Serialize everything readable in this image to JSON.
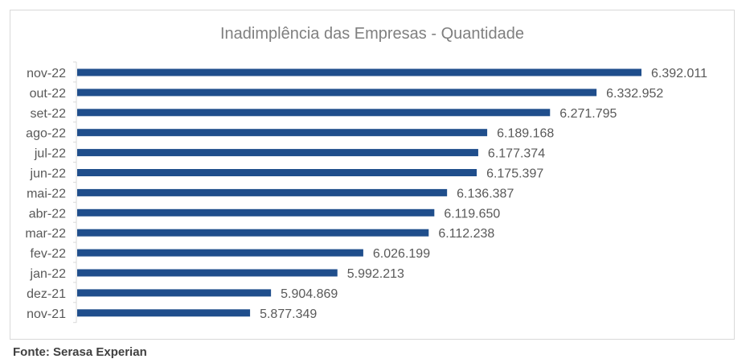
{
  "chart_data": {
    "type": "bar",
    "orientation": "horizontal",
    "title": "Inadimplência das Empresas - Quantidade",
    "xlabel": "",
    "ylabel": "",
    "categories": [
      "nov-22",
      "out-22",
      "set-22",
      "ago-22",
      "jul-22",
      "jun-22",
      "mai-22",
      "abr-22",
      "mar-22",
      "fev-22",
      "jan-22",
      "dez-21",
      "nov-21"
    ],
    "values": [
      6392011,
      6332952,
      6271795,
      6189168,
      6177374,
      6175397,
      6136387,
      6119650,
      6112238,
      6026199,
      5992213,
      5904869,
      5877349
    ],
    "value_labels": [
      "6.392.011",
      "6.332.952",
      "6.271.795",
      "6.189.168",
      "6.177.374",
      "6.175.397",
      "6.136.387",
      "6.119.650",
      "6.112.238",
      "6.026.199",
      "5.992.213",
      "5.904.869",
      "5.877.349"
    ],
    "xlim": [
      5650000,
      6392011
    ],
    "grid": false,
    "legend": "none",
    "bar_color": "#1f4e8c"
  },
  "source": "Fonte: Serasa Experian"
}
